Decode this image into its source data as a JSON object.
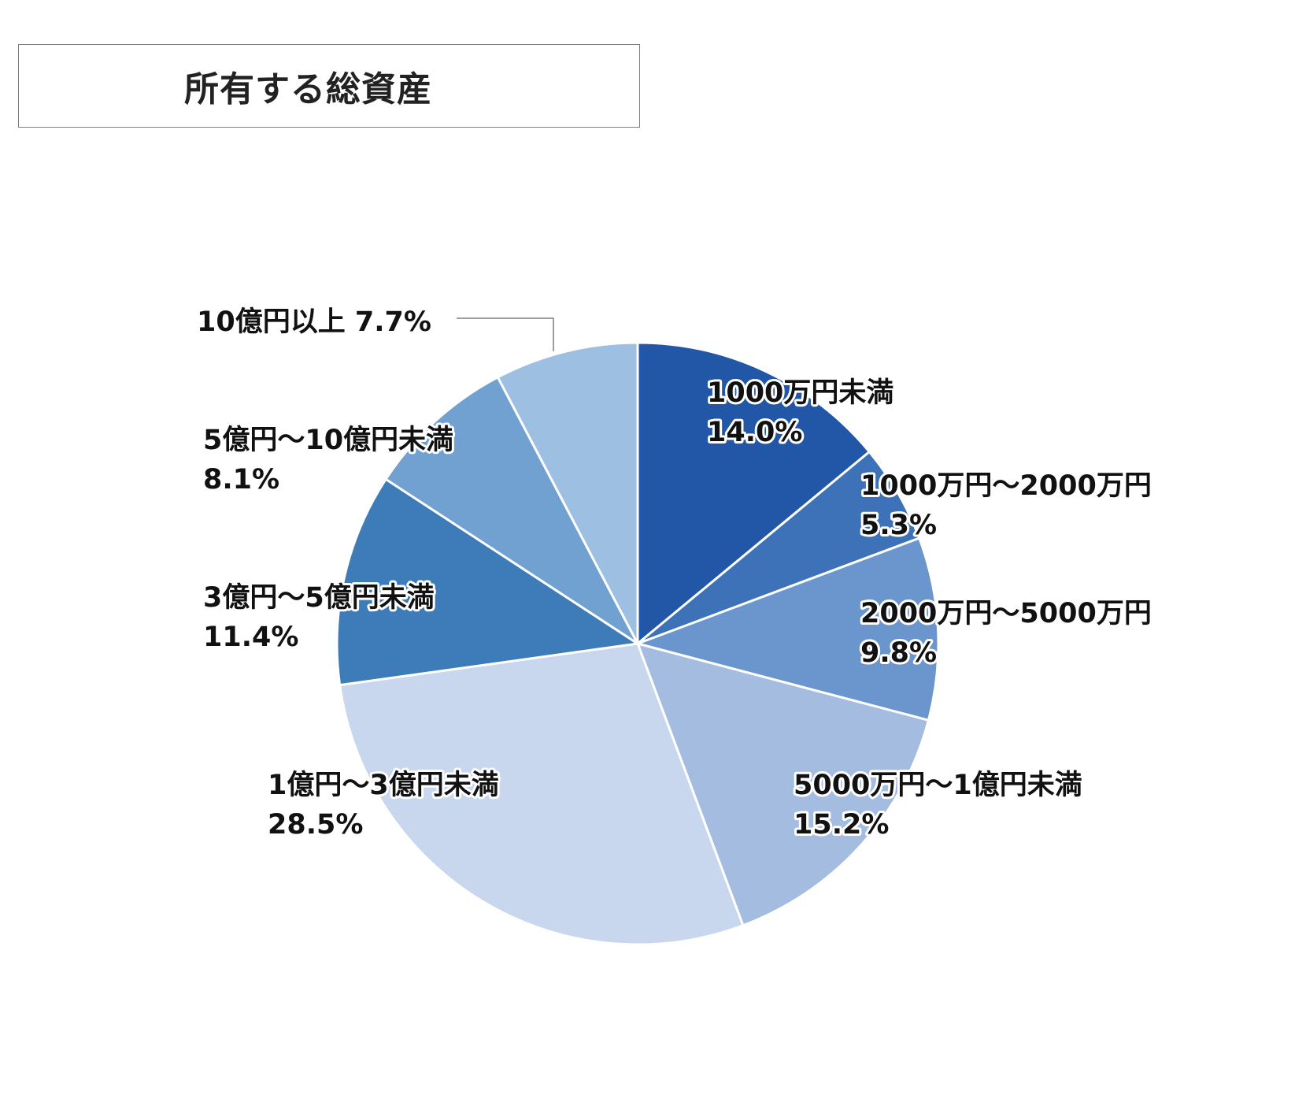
{
  "title": "所有する総資産",
  "chart_data": {
    "type": "pie",
    "title": "所有する総資産",
    "start_angle_deg": 0,
    "direction": "clockwise",
    "slices": [
      {
        "label": "1000万円未満",
        "value": 14.0,
        "pct_text": "14.0%",
        "color": "#2256a6"
      },
      {
        "label": "1000万円～2000万円",
        "value": 5.3,
        "pct_text": "5.3%",
        "color": "#3d72b8"
      },
      {
        "label": "2000万円～5000万円",
        "value": 9.8,
        "pct_text": "9.8%",
        "color": "#6b95cd"
      },
      {
        "label": "5000万円～1億円未満",
        "value": 15.2,
        "pct_text": "15.2%",
        "color": "#a3bce0"
      },
      {
        "label": "1億円～3億円未満",
        "value": 28.5,
        "pct_text": "28.5%",
        "color": "#c8d7ed"
      },
      {
        "label": "3億円～5億円未満",
        "value": 11.4,
        "pct_text": "11.4%",
        "color": "#3e7cb9"
      },
      {
        "label": "5億円～10億円未満",
        "value": 8.1,
        "pct_text": "8.1%",
        "color": "#70a1d0"
      },
      {
        "label": "10億円以上",
        "value": 7.7,
        "pct_text": "7.7%",
        "color": "#9dbfe1"
      }
    ]
  }
}
